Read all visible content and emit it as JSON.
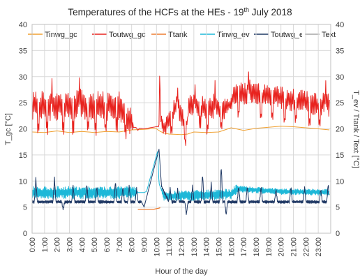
{
  "chart_data": {
    "type": "line",
    "title": "Temperatures of the HCFs at the HEs - 19",
    "title_superscript": "th",
    "title_suffix": " July 2018",
    "xlabel": "Hour of the day",
    "ylabel_left": "T_gc [°C]",
    "ylabel_right": "T_ev / Ttank / Text  [°C]",
    "ylim": [
      0,
      40
    ],
    "y_ticks": [
      "0",
      "5",
      "10",
      "15",
      "20",
      "25",
      "30",
      "35",
      "40"
    ],
    "x_ticks": [
      "0:00",
      "1:00",
      "2:00",
      "3:00",
      "4:00",
      "5:00",
      "6:00",
      "7:00",
      "8:00",
      "9:00",
      "10:00",
      "11:00",
      "12:00",
      "13:00",
      "14:00",
      "15:00",
      "16:00",
      "17:00",
      "18:00",
      "19:00",
      "20:00",
      "21:00",
      "22:00",
      "23:00"
    ],
    "grid": true,
    "legend_position": "top",
    "series": [
      {
        "name": "Tinwg_gc",
        "color": "#f0a030",
        "axis": "left",
        "x": [
          0,
          1,
          2,
          3,
          4,
          5,
          6,
          7,
          8,
          9,
          9.5,
          10,
          10.3,
          10.6,
          11,
          12,
          12.5,
          13,
          14,
          15,
          15.5,
          16,
          17,
          18,
          19,
          20,
          21,
          22,
          23,
          23.9
        ],
        "y": [
          19.4,
          19.3,
          19.6,
          19.3,
          19.5,
          19.3,
          19.5,
          19.4,
          19.8,
          19.9,
          20,
          20,
          19.5,
          19.2,
          19.0,
          18.9,
          19.0,
          19.4,
          19.3,
          19.4,
          19.8,
          20.2,
          19.7,
          20.1,
          20.3,
          20.5,
          20.4,
          20.2,
          20.0,
          19.8
        ]
      },
      {
        "name": "Toutwg_gc",
        "color": "#e8231f",
        "axis": "left",
        "base": [
          [
            0,
            24.5
          ],
          [
            7,
            24.5
          ],
          [
            8.2,
            20.3
          ],
          [
            9,
            20
          ],
          [
            10.2,
            20.5
          ],
          [
            10.25,
            30.5
          ],
          [
            10.35,
            22
          ],
          [
            10.6,
            20
          ],
          [
            11.6,
            24.5
          ],
          [
            12.4,
            20.5
          ],
          [
            12.6,
            24
          ],
          [
            15.5,
            24
          ],
          [
            16,
            25
          ],
          [
            16.3,
            27
          ],
          [
            19,
            26.5
          ],
          [
            20,
            26
          ],
          [
            21,
            25.5
          ],
          [
            23.9,
            24.5
          ]
        ],
        "osc": [
          [
            0,
            3
          ],
          [
            7.9,
            3
          ],
          [
            8.2,
            0
          ],
          [
            10.1,
            0
          ],
          [
            10.7,
            2
          ],
          [
            12.4,
            2
          ],
          [
            12.5,
            0
          ],
          [
            12.6,
            2.5
          ],
          [
            15.4,
            2.5
          ],
          [
            15.8,
            1
          ],
          [
            16.3,
            2.2
          ],
          [
            23.9,
            2.2
          ]
        ],
        "period": 0.1,
        "spikes": [
          [
            0.5,
            -5
          ],
          [
            1.2,
            -5.5
          ],
          [
            1.6,
            2.5
          ],
          [
            2.5,
            -5
          ],
          [
            3.3,
            -5
          ],
          [
            3.8,
            3
          ],
          [
            4.5,
            -4.5
          ],
          [
            5.1,
            -5
          ],
          [
            5.9,
            -5
          ],
          [
            6.8,
            -5
          ],
          [
            7.5,
            -4
          ],
          [
            8.5,
            -0.5
          ],
          [
            11.2,
            -4
          ],
          [
            11.7,
            3
          ],
          [
            12.3,
            -4
          ],
          [
            13.1,
            3
          ],
          [
            13.5,
            -4
          ],
          [
            14.1,
            -4.5
          ],
          [
            14.7,
            3
          ],
          [
            15.2,
            -4.5
          ],
          [
            16.6,
            -5
          ],
          [
            17.4,
            3
          ],
          [
            18.4,
            -5
          ],
          [
            19.3,
            -5
          ],
          [
            20.3,
            -5
          ],
          [
            21.2,
            -4.5
          ],
          [
            22.3,
            -4
          ],
          [
            23.1,
            -5
          ],
          [
            23.6,
            2.5
          ]
        ]
      },
      {
        "name": "Ttank",
        "color": "#ed7d31",
        "axis": "right",
        "x": [
          8.5,
          9.0,
          9.5,
          9.8,
          10.0,
          10.2,
          10.3
        ],
        "y": [
          4.6,
          4.6,
          4.6,
          4.6,
          4.7,
          4.8,
          4.9
        ]
      },
      {
        "name": "Tinwg_ev",
        "color": "#1db8d8",
        "axis": "right",
        "base": [
          [
            0,
            7.8
          ],
          [
            9,
            7.8
          ],
          [
            9.2,
            8
          ],
          [
            10.1,
            15.8
          ],
          [
            10.2,
            9.5
          ],
          [
            10.6,
            7
          ],
          [
            12.5,
            7.2
          ],
          [
            16,
            7.5
          ],
          [
            16.5,
            8.5
          ],
          [
            20,
            8
          ],
          [
            23.9,
            7.8
          ]
        ],
        "osc": [
          [
            0,
            1.2
          ],
          [
            8.3,
            1.2
          ],
          [
            8.5,
            0
          ],
          [
            10.3,
            0
          ],
          [
            10.6,
            1
          ],
          [
            16.4,
            1
          ],
          [
            16.6,
            0.6
          ],
          [
            23.9,
            0.6
          ]
        ],
        "period": 0.07,
        "spikes": []
      },
      {
        "name": "Toutwg_ev",
        "color": "#1f3864",
        "axis": "right",
        "base": [
          [
            0,
            6
          ],
          [
            8.8,
            6
          ],
          [
            9.0,
            5
          ],
          [
            10.2,
            16.1
          ],
          [
            10.4,
            9
          ],
          [
            11,
            6
          ],
          [
            16.2,
            6
          ],
          [
            16.5,
            6
          ],
          [
            23.9,
            6
          ]
        ],
        "osc": [
          [
            0,
            0.3
          ],
          [
            8.7,
            0.3
          ],
          [
            8.9,
            0
          ],
          [
            10.3,
            0
          ],
          [
            10.6,
            0.3
          ],
          [
            23.9,
            0.3
          ]
        ],
        "period": 0.06,
        "spikes": [
          [
            0.3,
            4.5
          ],
          [
            1.8,
            4.5
          ],
          [
            2.5,
            -1.5
          ],
          [
            3.3,
            3
          ],
          [
            4.4,
            3.5
          ],
          [
            5.2,
            3
          ],
          [
            6.7,
            4
          ],
          [
            7.3,
            3
          ],
          [
            7.8,
            3
          ],
          [
            8.4,
            2.5
          ],
          [
            11.1,
            2.5
          ],
          [
            11.7,
            2.5
          ],
          [
            12.4,
            -2.5
          ],
          [
            12.9,
            3
          ],
          [
            13.7,
            5.5
          ],
          [
            14.4,
            3.5
          ],
          [
            15.2,
            7
          ],
          [
            15.6,
            -2.5
          ],
          [
            16.6,
            3
          ],
          [
            17.3,
            3
          ],
          [
            18.4,
            3
          ],
          [
            19.6,
            2.5
          ],
          [
            20.8,
            3
          ],
          [
            21.9,
            2.8
          ],
          [
            23.2,
            2.5
          ],
          [
            23.8,
            3.5
          ]
        ]
      },
      {
        "name": "Text",
        "color": "#a6a6a6",
        "axis": "right",
        "x": [],
        "y": []
      }
    ]
  }
}
